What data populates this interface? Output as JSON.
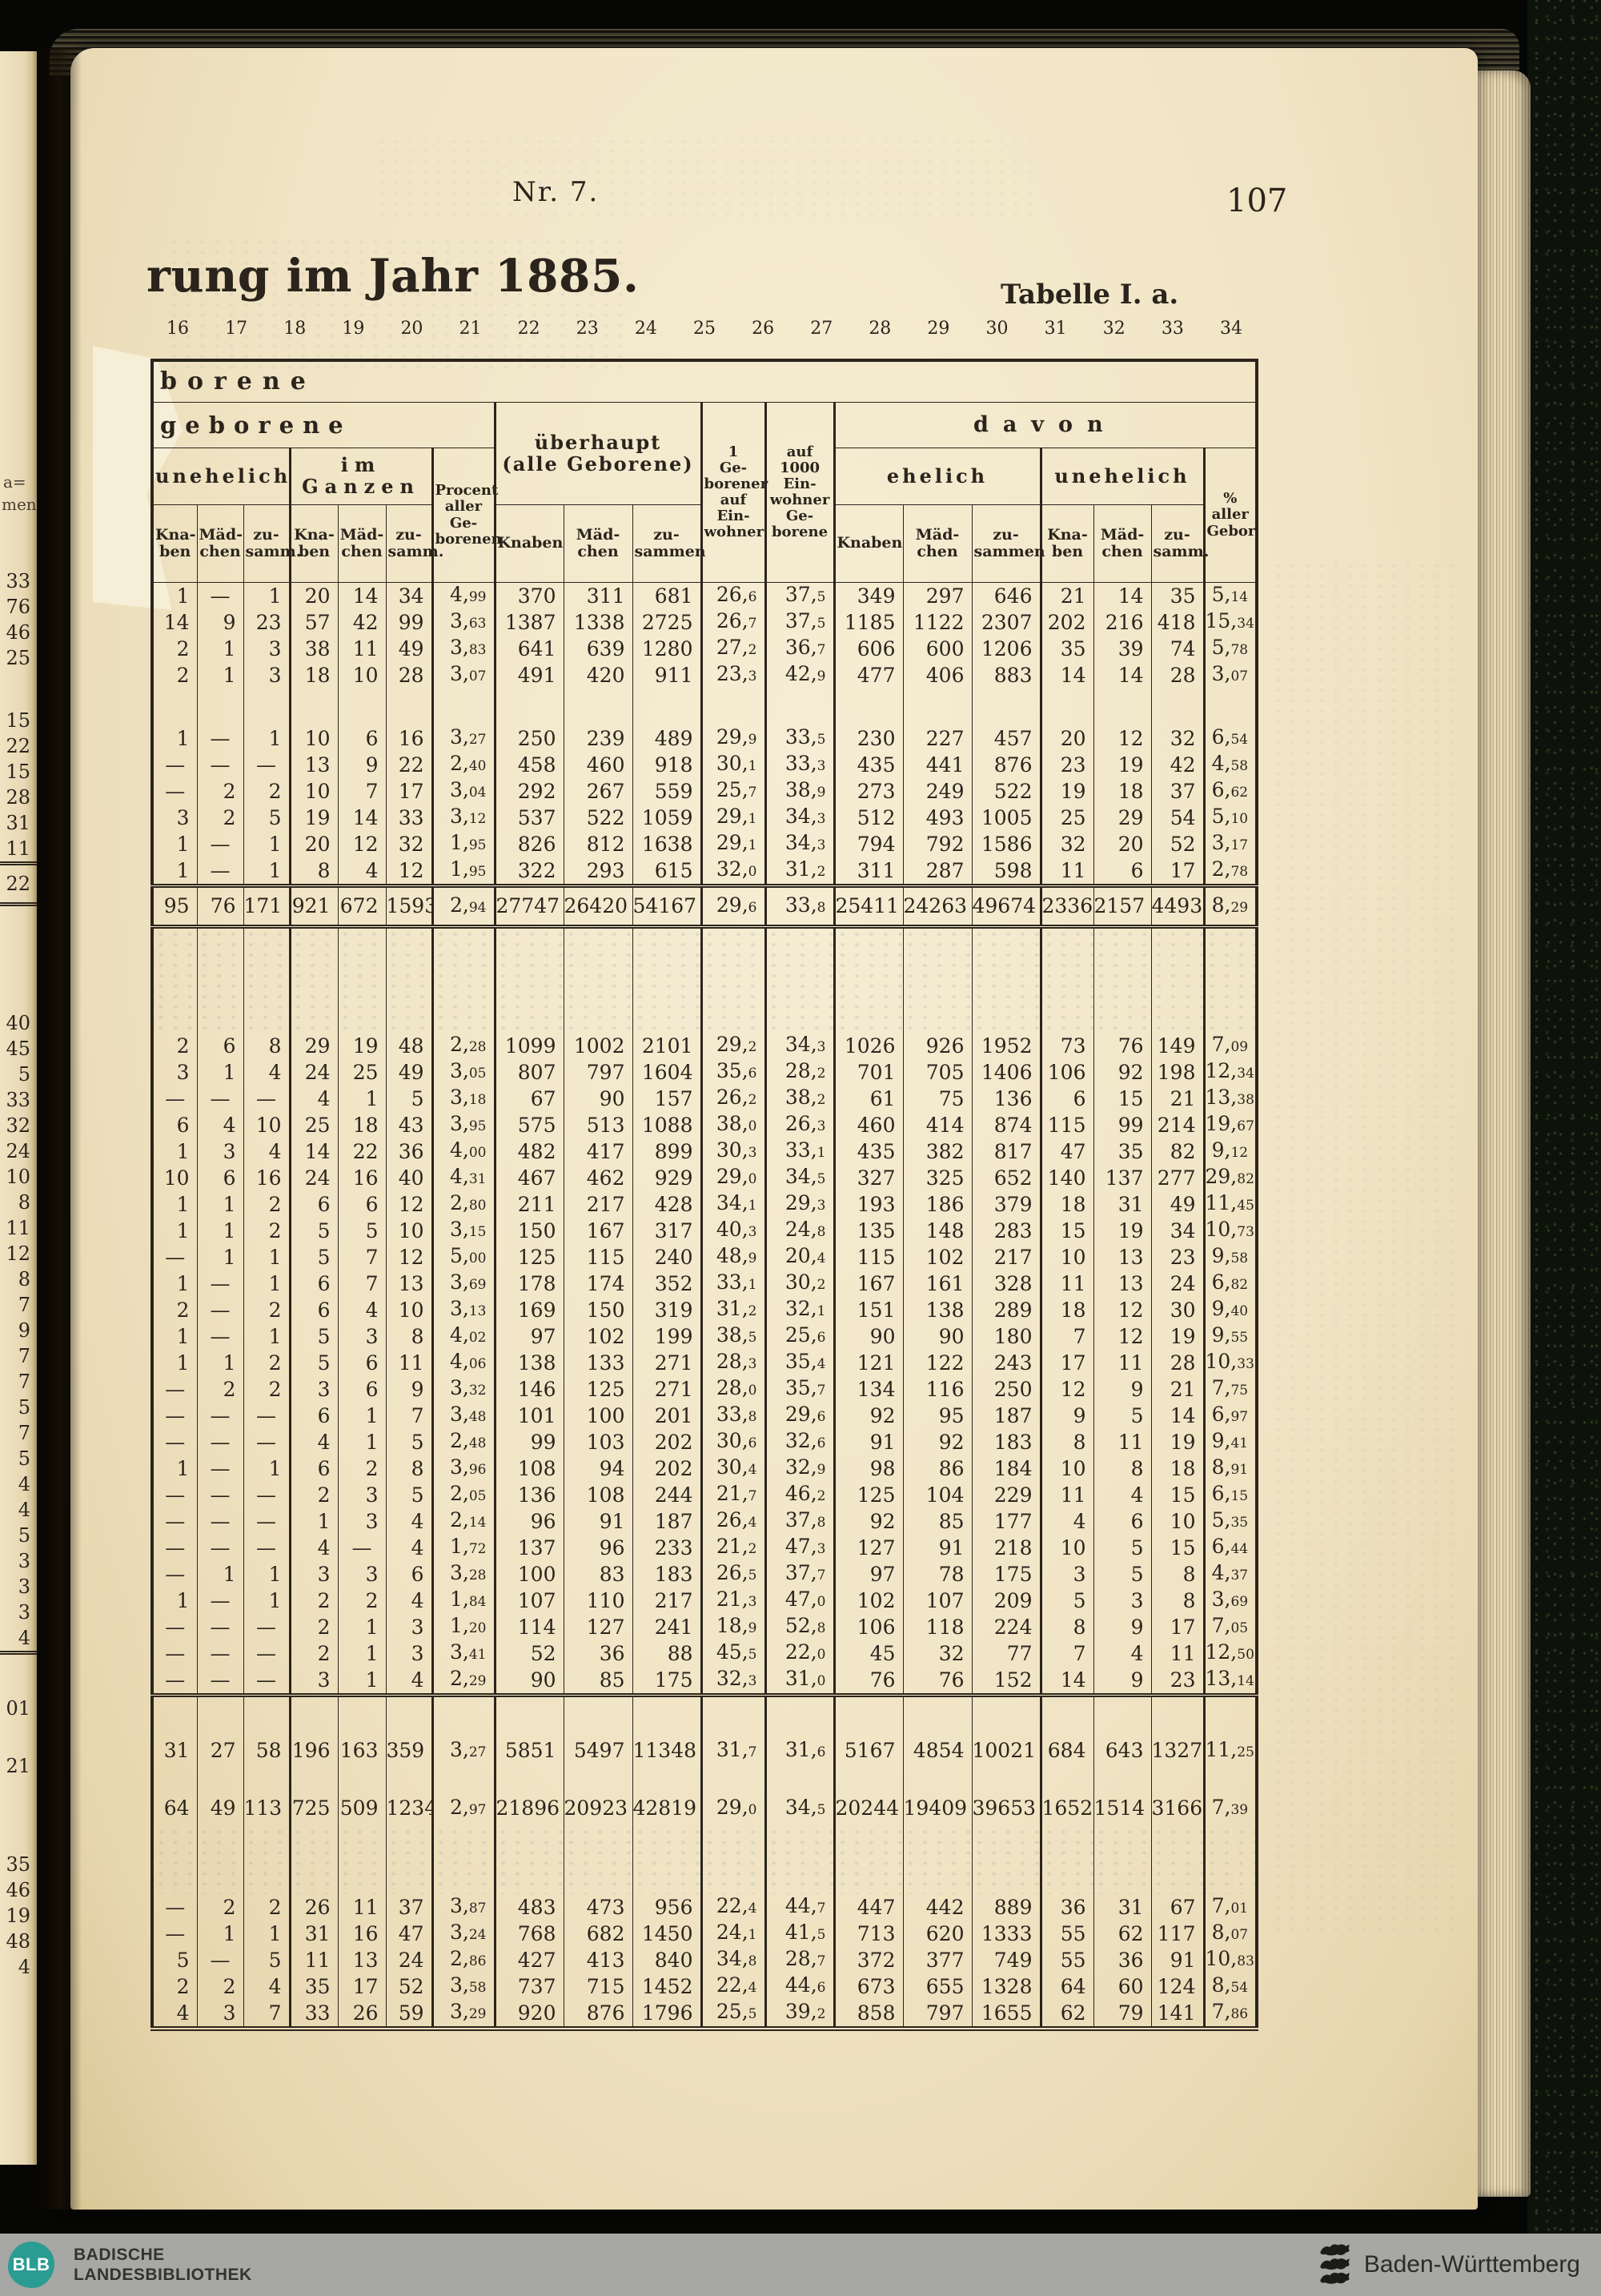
{
  "page_header": {
    "nr": "Nr. 7.",
    "page_number": "107",
    "title_fragment": "rung im Jahr 1885.",
    "table_label": "Tabelle I. a."
  },
  "edge_fragments": {
    "frag1": "a=",
    "frag2": "men"
  },
  "table": {
    "col_numbers": [
      "16",
      "17",
      "18",
      "19",
      "20",
      "21",
      "22",
      "23",
      "24",
      "25",
      "26",
      "27",
      "28",
      "29",
      "30",
      "31",
      "32",
      "33",
      "34"
    ],
    "headers": {
      "top_fragment": "borene",
      "geborene": "geborene",
      "unehelich": "unehelich",
      "im_ganzen": "im Ganzen",
      "procent": "Procent\naller\nGe-\nborenen",
      "ueberhaupt": "überhaupt\n(alle Geborene)",
      "geb1": "1\nGe-\nborener\nauf\nEin-\nwohner",
      "auf1000": "auf\n1000\nEin-\nwohner\nGe-\nborene",
      "davon": "davon",
      "ehelich": "ehelich",
      "unehelich2": "unehelich",
      "pct_aller": "% aller\nGebor.",
      "knaben_h": "Kna-\nben",
      "maedchen_h": "Mäd-\nchen",
      "zusamm_h": "zu-\nsamm.",
      "knaben": "Knaben",
      "maedchen": "Mäd-\nchen",
      "zusammen": "zu-\nsammen"
    },
    "rows": [
      {
        "t": "d",
        "e": "33",
        "c": [
          "1",
          "—",
          "1",
          "20",
          "14",
          "34",
          "4,99",
          "370",
          "311",
          "681",
          "26,6",
          "37,5",
          "349",
          "297",
          "646",
          "21",
          "14",
          "35",
          "5,14"
        ]
      },
      {
        "t": "d",
        "e": "76",
        "c": [
          "14",
          "9",
          "23",
          "57",
          "42",
          "99",
          "3,63",
          "1387",
          "1338",
          "2725",
          "26,7",
          "37,5",
          "1185",
          "1122",
          "2307",
          "202",
          "216",
          "418",
          "15,34"
        ]
      },
      {
        "t": "d",
        "e": "46",
        "c": [
          "2",
          "1",
          "3",
          "38",
          "11",
          "49",
          "3,83",
          "641",
          "639",
          "1280",
          "27,2",
          "36,7",
          "606",
          "600",
          "1206",
          "35",
          "39",
          "74",
          "5,78"
        ]
      },
      {
        "t": "d",
        "e": "25",
        "c": [
          "2",
          "1",
          "3",
          "18",
          "10",
          "28",
          "3,07",
          "491",
          "420",
          "911",
          "23,3",
          "42,9",
          "477",
          "406",
          "883",
          "14",
          "14",
          "28",
          "3,07"
        ]
      },
      {
        "t": "g",
        "size": "s"
      },
      {
        "t": "d",
        "e": "15",
        "c": [
          "1",
          "—",
          "1",
          "10",
          "6",
          "16",
          "3,27",
          "250",
          "239",
          "489",
          "29,9",
          "33,5",
          "230",
          "227",
          "457",
          "20",
          "12",
          "32",
          "6,54"
        ]
      },
      {
        "t": "d",
        "e": "22",
        "c": [
          "—",
          "—",
          "—",
          "13",
          "9",
          "22",
          "2,40",
          "458",
          "460",
          "918",
          "30,1",
          "33,3",
          "435",
          "441",
          "876",
          "23",
          "19",
          "42",
          "4,58"
        ]
      },
      {
        "t": "d",
        "e": "15",
        "c": [
          "—",
          "2",
          "2",
          "10",
          "7",
          "17",
          "3,04",
          "292",
          "267",
          "559",
          "25,7",
          "38,9",
          "273",
          "249",
          "522",
          "19",
          "18",
          "37",
          "6,62"
        ]
      },
      {
        "t": "d",
        "e": "28",
        "c": [
          "3",
          "2",
          "5",
          "19",
          "14",
          "33",
          "3,12",
          "537",
          "522",
          "1059",
          "29,1",
          "34,3",
          "512",
          "493",
          "1005",
          "25",
          "29",
          "54",
          "5,10"
        ]
      },
      {
        "t": "d",
        "e": "31",
        "c": [
          "1",
          "—",
          "1",
          "20",
          "12",
          "32",
          "1,95",
          "826",
          "812",
          "1638",
          "29,1",
          "34,3",
          "794",
          "792",
          "1586",
          "32",
          "20",
          "52",
          "3,17"
        ]
      },
      {
        "t": "d",
        "e": "11",
        "c": [
          "1",
          "—",
          "1",
          "8",
          "4",
          "12",
          "1,95",
          "322",
          "293",
          "615",
          "32,0",
          "31,2",
          "311",
          "287",
          "598",
          "11",
          "6",
          "17",
          "2,78"
        ]
      },
      {
        "t": "d",
        "e": "22",
        "v": "total",
        "c": [
          "95",
          "76",
          "171",
          "921",
          "672",
          "1593",
          "2,94",
          "27747",
          "26420",
          "54167",
          "29,6",
          "33,8",
          "25411",
          "24263",
          "49674",
          "2336",
          "2157",
          "4493",
          "8,29"
        ]
      },
      {
        "t": "g",
        "size": "gl",
        "ghost": true
      },
      {
        "t": "d",
        "e": "40",
        "c": [
          "2",
          "6",
          "8",
          "29",
          "19",
          "48",
          "2,28",
          "1099",
          "1002",
          "2101",
          "29,2",
          "34,3",
          "1026",
          "926",
          "1952",
          "73",
          "76",
          "149",
          "7,09"
        ]
      },
      {
        "t": "d",
        "e": "45",
        "c": [
          "3",
          "1",
          "4",
          "24",
          "25",
          "49",
          "3,05",
          "807",
          "797",
          "1604",
          "35,6",
          "28,2",
          "701",
          "705",
          "1406",
          "106",
          "92",
          "198",
          "12,34"
        ]
      },
      {
        "t": "d",
        "e": "5",
        "c": [
          "—",
          "—",
          "—",
          "4",
          "1",
          "5",
          "3,18",
          "67",
          "90",
          "157",
          "26,2",
          "38,2",
          "61",
          "75",
          "136",
          "6",
          "15",
          "21",
          "13,38"
        ]
      },
      {
        "t": "d",
        "e": "33",
        "c": [
          "6",
          "4",
          "10",
          "25",
          "18",
          "43",
          "3,95",
          "575",
          "513",
          "1088",
          "38,0",
          "26,3",
          "460",
          "414",
          "874",
          "115",
          "99",
          "214",
          "19,67"
        ]
      },
      {
        "t": "d",
        "e": "32",
        "c": [
          "1",
          "3",
          "4",
          "14",
          "22",
          "36",
          "4,00",
          "482",
          "417",
          "899",
          "30,3",
          "33,1",
          "435",
          "382",
          "817",
          "47",
          "35",
          "82",
          "9,12"
        ]
      },
      {
        "t": "d",
        "e": "24",
        "c": [
          "10",
          "6",
          "16",
          "24",
          "16",
          "40",
          "4,31",
          "467",
          "462",
          "929",
          "29,0",
          "34,5",
          "327",
          "325",
          "652",
          "140",
          "137",
          "277",
          "29,82"
        ]
      },
      {
        "t": "d",
        "e": "10",
        "c": [
          "1",
          "1",
          "2",
          "6",
          "6",
          "12",
          "2,80",
          "211",
          "217",
          "428",
          "34,1",
          "29,3",
          "193",
          "186",
          "379",
          "18",
          "31",
          "49",
          "11,45"
        ]
      },
      {
        "t": "d",
        "e": "8",
        "c": [
          "1",
          "1",
          "2",
          "5",
          "5",
          "10",
          "3,15",
          "150",
          "167",
          "317",
          "40,3",
          "24,8",
          "135",
          "148",
          "283",
          "15",
          "19",
          "34",
          "10,73"
        ]
      },
      {
        "t": "d",
        "e": "11",
        "c": [
          "—",
          "1",
          "1",
          "5",
          "7",
          "12",
          "5,00",
          "125",
          "115",
          "240",
          "48,9",
          "20,4",
          "115",
          "102",
          "217",
          "10",
          "13",
          "23",
          "9,58"
        ]
      },
      {
        "t": "d",
        "e": "12",
        "c": [
          "1",
          "—",
          "1",
          "6",
          "7",
          "13",
          "3,69",
          "178",
          "174",
          "352",
          "33,1",
          "30,2",
          "167",
          "161",
          "328",
          "11",
          "13",
          "24",
          "6,82"
        ]
      },
      {
        "t": "d",
        "e": "8",
        "c": [
          "2",
          "—",
          "2",
          "6",
          "4",
          "10",
          "3,13",
          "169",
          "150",
          "319",
          "31,2",
          "32,1",
          "151",
          "138",
          "289",
          "18",
          "12",
          "30",
          "9,40"
        ]
      },
      {
        "t": "d",
        "e": "7",
        "c": [
          "1",
          "—",
          "1",
          "5",
          "3",
          "8",
          "4,02",
          "97",
          "102",
          "199",
          "38,5",
          "25,6",
          "90",
          "90",
          "180",
          "7",
          "12",
          "19",
          "9,55"
        ]
      },
      {
        "t": "d",
        "e": "9",
        "c": [
          "1",
          "1",
          "2",
          "5",
          "6",
          "11",
          "4,06",
          "138",
          "133",
          "271",
          "28,3",
          "35,4",
          "121",
          "122",
          "243",
          "17",
          "11",
          "28",
          "10,33"
        ]
      },
      {
        "t": "d",
        "e": "7",
        "c": [
          "—",
          "2",
          "2",
          "3",
          "6",
          "9",
          "3,32",
          "146",
          "125",
          "271",
          "28,0",
          "35,7",
          "134",
          "116",
          "250",
          "12",
          "9",
          "21",
          "7,75"
        ]
      },
      {
        "t": "d",
        "e": "7",
        "c": [
          "—",
          "—",
          "—",
          "6",
          "1",
          "7",
          "3,48",
          "101",
          "100",
          "201",
          "33,8",
          "29,6",
          "92",
          "95",
          "187",
          "9",
          "5",
          "14",
          "6,97"
        ]
      },
      {
        "t": "d",
        "e": "5",
        "c": [
          "—",
          "—",
          "—",
          "4",
          "1",
          "5",
          "2,48",
          "99",
          "103",
          "202",
          "30,6",
          "32,6",
          "91",
          "92",
          "183",
          "8",
          "11",
          "19",
          "9,41"
        ]
      },
      {
        "t": "d",
        "e": "7",
        "c": [
          "1",
          "—",
          "1",
          "6",
          "2",
          "8",
          "3,96",
          "108",
          "94",
          "202",
          "30,4",
          "32,9",
          "98",
          "86",
          "184",
          "10",
          "8",
          "18",
          "8,91"
        ]
      },
      {
        "t": "d",
        "e": "5",
        "c": [
          "—",
          "—",
          "—",
          "2",
          "3",
          "5",
          "2,05",
          "136",
          "108",
          "244",
          "21,7",
          "46,2",
          "125",
          "104",
          "229",
          "11",
          "4",
          "15",
          "6,15"
        ]
      },
      {
        "t": "d",
        "e": "4",
        "c": [
          "—",
          "—",
          "—",
          "1",
          "3",
          "4",
          "2,14",
          "96",
          "91",
          "187",
          "26,4",
          "37,8",
          "92",
          "85",
          "177",
          "4",
          "6",
          "10",
          "5,35"
        ]
      },
      {
        "t": "d",
        "e": "4",
        "c": [
          "—",
          "—",
          "—",
          "4",
          "—",
          "4",
          "1,72",
          "137",
          "96",
          "233",
          "21,2",
          "47,3",
          "127",
          "91",
          "218",
          "10",
          "5",
          "15",
          "6,44"
        ]
      },
      {
        "t": "d",
        "e": "5",
        "c": [
          "—",
          "1",
          "1",
          "3",
          "3",
          "6",
          "3,28",
          "100",
          "83",
          "183",
          "26,5",
          "37,7",
          "97",
          "78",
          "175",
          "3",
          "5",
          "8",
          "4,37"
        ]
      },
      {
        "t": "d",
        "e": "3",
        "c": [
          "1",
          "—",
          "1",
          "2",
          "2",
          "4",
          "1,84",
          "107",
          "110",
          "217",
          "21,3",
          "47,0",
          "102",
          "107",
          "209",
          "5",
          "3",
          "8",
          "3,69"
        ]
      },
      {
        "t": "d",
        "e": "3",
        "c": [
          "—",
          "—",
          "—",
          "2",
          "1",
          "3",
          "1,20",
          "114",
          "127",
          "241",
          "18,9",
          "52,8",
          "106",
          "118",
          "224",
          "8",
          "9",
          "17",
          "7,05"
        ]
      },
      {
        "t": "d",
        "e": "3",
        "c": [
          "—",
          "—",
          "—",
          "2",
          "1",
          "3",
          "3,41",
          "52",
          "36",
          "88",
          "45,5",
          "22,0",
          "45",
          "32",
          "77",
          "7",
          "4",
          "11",
          "12,50"
        ]
      },
      {
        "t": "d",
        "e": "4",
        "rb": true,
        "c": [
          "—",
          "—",
          "—",
          "3",
          "1",
          "4",
          "2,29",
          "90",
          "85",
          "175",
          "32,3",
          "31,0",
          "76",
          "76",
          "152",
          "14",
          "9",
          "23",
          "13,14"
        ]
      },
      {
        "t": "g",
        "size": "m"
      },
      {
        "t": "d",
        "e": "01",
        "v": "tall",
        "c": [
          "31",
          "27",
          "58",
          "196",
          "163",
          "359",
          "3,27",
          "5851",
          "5497",
          "11348",
          "31,7",
          "31,6",
          "5167",
          "4854",
          "10021",
          "684",
          "643",
          "1327",
          "11,25"
        ]
      },
      {
        "t": "g",
        "size": "xs"
      },
      {
        "t": "d",
        "e": "21",
        "v": "tall",
        "c": [
          "64",
          "49",
          "113",
          "725",
          "509",
          "1234",
          "2,97",
          "21896",
          "20923",
          "42819",
          "29,0",
          "34,5",
          "20244",
          "19409",
          "39653",
          "1652",
          "1514",
          "3166",
          "7,39"
        ]
      },
      {
        "t": "g",
        "size": "gm",
        "ghost": true
      },
      {
        "t": "d",
        "e": "35",
        "c": [
          "—",
          "2",
          "2",
          "26",
          "11",
          "37",
          "3,87",
          "483",
          "473",
          "956",
          "22,4",
          "44,7",
          "447",
          "442",
          "889",
          "36",
          "31",
          "67",
          "7,01"
        ]
      },
      {
        "t": "d",
        "e": "46",
        "c": [
          "—",
          "1",
          "1",
          "31",
          "16",
          "47",
          "3,24",
          "768",
          "682",
          "1450",
          "24,1",
          "41,5",
          "713",
          "620",
          "1333",
          "55",
          "62",
          "117",
          "8,07"
        ]
      },
      {
        "t": "d",
        "e": "19",
        "c": [
          "5",
          "—",
          "5",
          "11",
          "13",
          "24",
          "2,86",
          "427",
          "413",
          "840",
          "34,8",
          "28,7",
          "372",
          "377",
          "749",
          "55",
          "36",
          "91",
          "10,83"
        ]
      },
      {
        "t": "d",
        "e": "48",
        "c": [
          "2",
          "2",
          "4",
          "35",
          "17",
          "52",
          "3,58",
          "737",
          "715",
          "1452",
          "22,4",
          "44,6",
          "673",
          "655",
          "1328",
          "64",
          "60",
          "124",
          "8,54"
        ]
      },
      {
        "t": "d",
        "e": "4",
        "c": [
          "4",
          "3",
          "7",
          "33",
          "26",
          "59",
          "3,29",
          "920",
          "876",
          "1796",
          "25,5",
          "39,2",
          "858",
          "797",
          "1655",
          "62",
          "79",
          "141",
          "7,86"
        ]
      }
    ]
  },
  "footer": {
    "blb_acronym": "BLB",
    "library_line1": "BADISCHE",
    "library_line2": "LANDESBIBLIOTHEK",
    "state": "Baden-Württemberg"
  }
}
